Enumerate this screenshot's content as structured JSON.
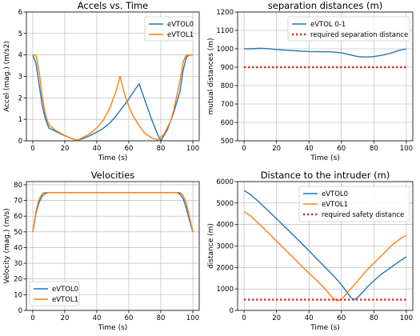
{
  "chart_data": [
    {
      "type": "line",
      "title": "Accels vs. Time",
      "xlabel": "Time (s)",
      "ylabel": "Accel (mag.) (m/s2)",
      "xlim": [
        -4,
        104
      ],
      "ylim": [
        0,
        6
      ],
      "xticks": [
        0,
        20,
        40,
        60,
        80,
        100
      ],
      "yticks": [
        0,
        1,
        2,
        3,
        4,
        5,
        6
      ],
      "grid": true,
      "legend_position": "top-right",
      "series": [
        {
          "name": "eVTOL0",
          "color": "#1f77b4",
          "style": "solid",
          "x": [
            0,
            2,
            4,
            6,
            8,
            10,
            14,
            18,
            22,
            26,
            28,
            32,
            36,
            40,
            44,
            48,
            52,
            56,
            60,
            64,
            66.5,
            70,
            74,
            78,
            80,
            84,
            88,
            92,
            94,
            96,
            98,
            100
          ],
          "y": [
            4.0,
            3.6,
            2.6,
            1.6,
            1.0,
            0.6,
            0.45,
            0.3,
            0.18,
            0.06,
            0.03,
            0.12,
            0.25,
            0.4,
            0.58,
            0.82,
            1.15,
            1.55,
            1.95,
            2.4,
            2.65,
            1.9,
            1.05,
            0.3,
            0.0,
            0.5,
            1.3,
            2.3,
            3.3,
            3.9,
            4.0,
            4.0
          ]
        },
        {
          "name": "eVTOL1",
          "color": "#ff7f0e",
          "style": "solid",
          "x": [
            0,
            2,
            4,
            6,
            8,
            10,
            14,
            18,
            22,
            26,
            28,
            32,
            36,
            40,
            44,
            48,
            52,
            54.5,
            58,
            62,
            66,
            70,
            74,
            78,
            82,
            86,
            88,
            92,
            94,
            96,
            98,
            100
          ],
          "y": [
            4.0,
            4.0,
            3.2,
            2.0,
            1.2,
            0.75,
            0.5,
            0.32,
            0.18,
            0.06,
            0.03,
            0.18,
            0.35,
            0.6,
            0.95,
            1.5,
            2.3,
            3.0,
            2.0,
            1.25,
            0.75,
            0.35,
            0.15,
            0.04,
            0.3,
            0.9,
            1.4,
            2.8,
            3.7,
            4.0,
            4.0,
            4.0
          ]
        }
      ]
    },
    {
      "type": "line",
      "title": "separation distances (m)",
      "xlabel": "Time (s)",
      "ylabel": "mutual distances (m)",
      "xlim": [
        -4,
        104
      ],
      "ylim": [
        500,
        1200
      ],
      "xticks": [
        0,
        20,
        40,
        60,
        80,
        100
      ],
      "yticks": [
        500,
        600,
        700,
        800,
        900,
        1000,
        1100,
        1200
      ],
      "grid": true,
      "legend_position": "top-right",
      "series": [
        {
          "name": "eVTOL 0-1",
          "color": "#1f77b4",
          "style": "solid",
          "x": [
            0,
            5,
            10,
            15,
            20,
            30,
            40,
            50,
            55,
            60,
            65,
            70,
            75,
            80,
            85,
            90,
            95,
            100
          ],
          "y": [
            1000,
            1000,
            1003,
            1001,
            996,
            990,
            985,
            984,
            983,
            978,
            968,
            958,
            955,
            958,
            965,
            975,
            990,
            1000
          ]
        },
        {
          "name": "required separation distance",
          "color": "#d62728",
          "style": "dotted",
          "x": [
            0,
            100
          ],
          "y": [
            900,
            900
          ]
        }
      ]
    },
    {
      "type": "line",
      "title": "Velocities",
      "xlabel": "Time (s)",
      "ylabel": "Velocity (mag.) (m/s)",
      "xlim": [
        -4,
        104
      ],
      "ylim": [
        0,
        82
      ],
      "xticks": [
        0,
        20,
        40,
        60,
        80,
        100
      ],
      "yticks": [
        0,
        10,
        20,
        30,
        40,
        50,
        60,
        70,
        80
      ],
      "grid": true,
      "legend_position": "bottom-left",
      "series": [
        {
          "name": "eVTOL0",
          "color": "#1f77b4",
          "style": "solid",
          "x": [
            0,
            2,
            4,
            6,
            8,
            10,
            12,
            90,
            92,
            94,
            96,
            98,
            100
          ],
          "y": [
            50,
            62,
            69,
            73,
            74.5,
            75,
            75,
            75,
            74,
            71,
            65,
            57,
            50
          ]
        },
        {
          "name": "eVTOL1",
          "color": "#ff7f0e",
          "style": "solid",
          "x": [
            0,
            2,
            4,
            6,
            8,
            10,
            12,
            90,
            92,
            94,
            96,
            98,
            100
          ],
          "y": [
            50,
            63,
            71,
            74.5,
            75,
            75,
            75,
            75,
            75,
            73,
            68,
            59,
            50
          ]
        }
      ]
    },
    {
      "type": "line",
      "title": "Distance to the intruder (m)",
      "xlabel": "Time (s)",
      "ylabel": "distance (m)",
      "xlim": [
        -4,
        104
      ],
      "ylim": [
        0,
        6000
      ],
      "xticks": [
        0,
        20,
        40,
        60,
        80,
        100
      ],
      "yticks": [
        0,
        1000,
        2000,
        3000,
        4000,
        5000,
        6000
      ],
      "grid": true,
      "legend_position": "top-right",
      "series": [
        {
          "name": "eVTOL0",
          "color": "#1f77b4",
          "style": "solid",
          "x": [
            0,
            4,
            8,
            12,
            16,
            20,
            24,
            28,
            32,
            36,
            40,
            44,
            48,
            52,
            56,
            60,
            62,
            64,
            66,
            68,
            70,
            72,
            74,
            76,
            80,
            84,
            88,
            92,
            96,
            100
          ],
          "y": [
            5580,
            5400,
            5130,
            4850,
            4560,
            4270,
            3980,
            3680,
            3380,
            3080,
            2780,
            2470,
            2160,
            1850,
            1540,
            1200,
            1000,
            780,
            590,
            500,
            600,
            760,
            920,
            1100,
            1380,
            1650,
            1870,
            2080,
            2300,
            2500
          ]
        },
        {
          "name": "eVTOL1",
          "color": "#ff7f0e",
          "style": "solid",
          "x": [
            0,
            4,
            8,
            12,
            16,
            20,
            24,
            28,
            32,
            36,
            40,
            44,
            48,
            50,
            52,
            54,
            56,
            58,
            60,
            62,
            64,
            68,
            72,
            76,
            80,
            84,
            88,
            92,
            96,
            100
          ],
          "y": [
            4600,
            4400,
            4120,
            3830,
            3530,
            3230,
            2930,
            2630,
            2330,
            2030,
            1740,
            1450,
            1150,
            1000,
            820,
            640,
            500,
            450,
            520,
            680,
            860,
            1200,
            1550,
            1900,
            2200,
            2500,
            2800,
            3100,
            3320,
            3500
          ]
        },
        {
          "name": "required safety distance",
          "color": "#d62728",
          "style": "dotted",
          "x": [
            0,
            100
          ],
          "y": [
            500,
            500
          ]
        }
      ]
    }
  ]
}
